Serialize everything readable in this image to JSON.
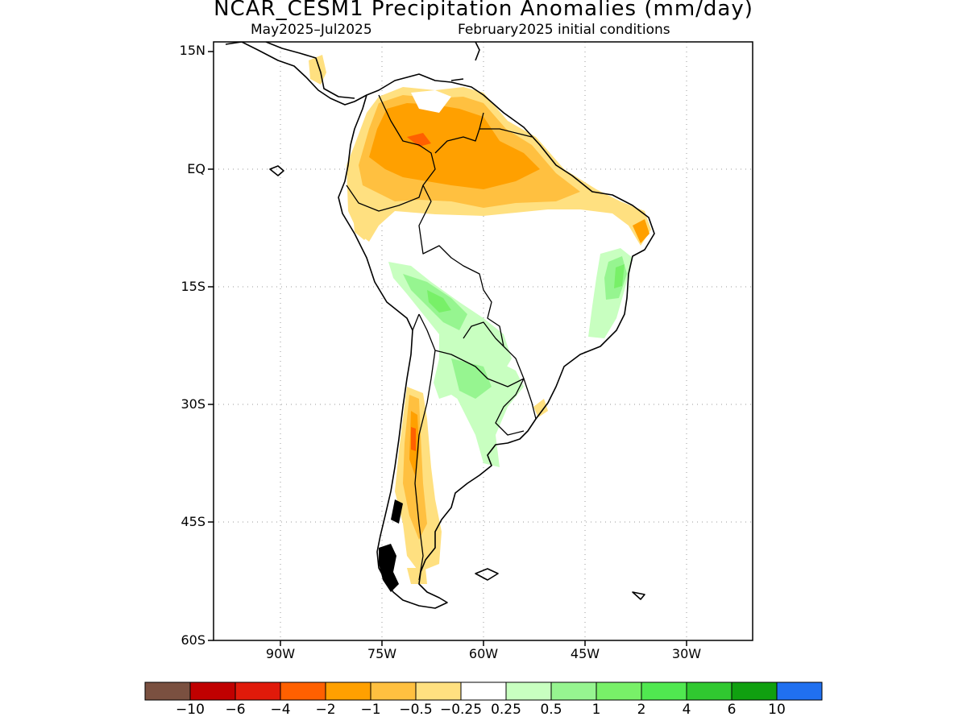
{
  "title": "NCAR_CESM1 Precipitation Anomalies (mm/day)",
  "subtitle_left": "May2025–Jul2025",
  "subtitle_right": "February2025 initial conditions",
  "lat_ticks": [
    "15N",
    "EQ",
    "15S",
    "30S",
    "45S",
    "60S"
  ],
  "lon_ticks": [
    "90W",
    "75W",
    "60W",
    "45W",
    "30W"
  ],
  "colorbar": {
    "colors": [
      "#7a5040",
      "#c00000",
      "#e01a0a",
      "#ff6000",
      "#ffa000",
      "#ffc040",
      "#ffe080",
      "#ffffff",
      "#c8ffc0",
      "#96f590",
      "#78f068",
      "#50e850",
      "#30c830",
      "#10a010",
      "#2070f0"
    ],
    "labels": [
      "−10",
      "−6",
      "−4",
      "−2",
      "−1",
      "−0.5",
      "−0.25",
      "0.25",
      "0.5",
      "1",
      "2",
      "4",
      "6",
      "10"
    ]
  }
}
